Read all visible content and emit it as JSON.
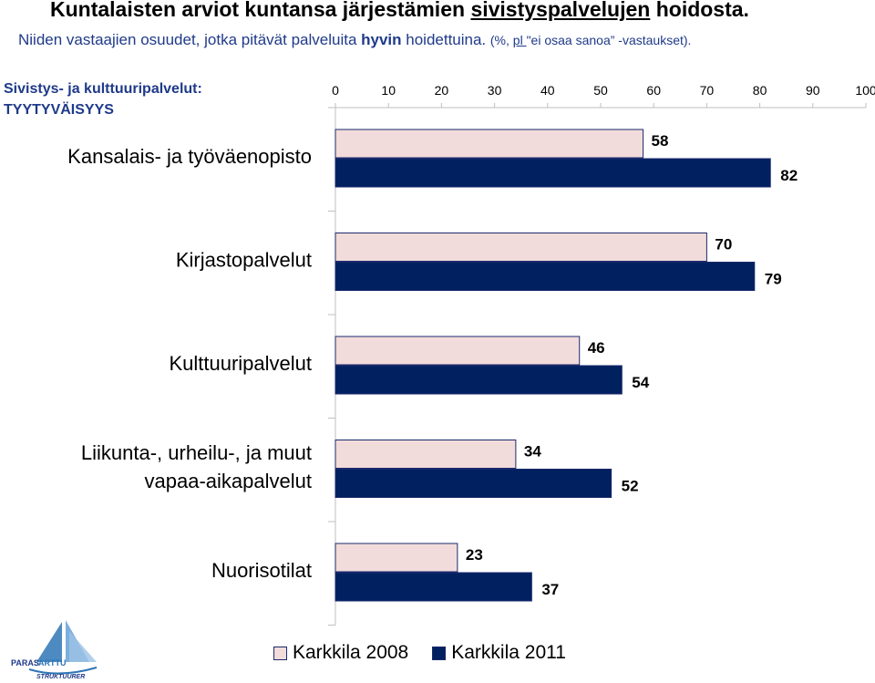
{
  "header": {
    "title_pre": "Kuntalaisten arviot kuntansa järjestämien ",
    "title_u": "sivistyspalvelujen",
    "title_post": " hoidosta.",
    "subtitle_pre": "Niiden vastaajien osuudet, jotka pitävät palveluita ",
    "subtitle_bold": "hyvin",
    "subtitle_post": " hoidettuina. ",
    "subtitle_small_pre": "(%, ",
    "subtitle_small_u": "pl ",
    "subtitle_small_post": "\"ei osaa sanoa” -vastaukset)."
  },
  "section": {
    "line1": "Sivistys- ja kulttuuripalvelut:",
    "line2": "TYYTYVÄISYYS"
  },
  "logo": {
    "word1": "PARAS",
    "word2": "ARTTU",
    "word3": "STRUKTUURER"
  },
  "colors": {
    "series_2008": "#f2dcdb",
    "series_2011": "#002060",
    "label": "#000000",
    "grid": "#bfbfbf",
    "text_blue": "#1f3a8a"
  },
  "chart_data": {
    "type": "bar",
    "orientation": "horizontal",
    "xlim": [
      0,
      100
    ],
    "ticks": [
      "0",
      "10",
      "20",
      "30",
      "40",
      "50",
      "60",
      "70",
      "80",
      "90",
      "100"
    ],
    "categories": [
      [
        "Kansalais- ja työväenopisto"
      ],
      [
        "Kirjastopalvelut"
      ],
      [
        "Kulttuuripalvelut"
      ],
      [
        "Liikunta-, urheilu-, ja muut",
        "vapaa-aikapalvelut"
      ],
      [
        "Nuorisotilat"
      ]
    ],
    "series": [
      {
        "name": "Karkkila 2008",
        "values": [
          58,
          70,
          46,
          34,
          23
        ]
      },
      {
        "name": "Karkkila 2011",
        "values": [
          82,
          79,
          54,
          52,
          37
        ]
      }
    ],
    "legend": "bottom"
  }
}
